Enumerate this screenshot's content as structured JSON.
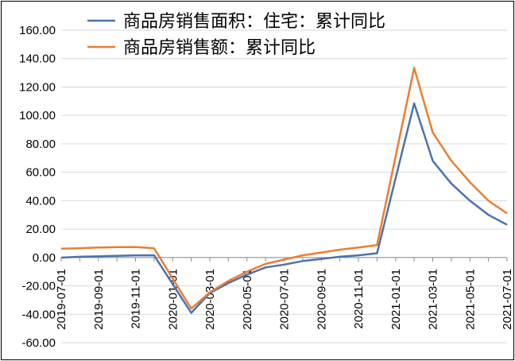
{
  "chart_data": {
    "type": "line",
    "title": "",
    "xlabel": "",
    "ylabel": "",
    "ylim": [
      -60,
      160
    ],
    "y_ticks": [
      -60,
      -40,
      -20,
      0,
      20,
      40,
      60,
      80,
      100,
      120,
      140,
      160
    ],
    "y_tick_labels": [
      "-60.00",
      "-40.00",
      "-20.00",
      "0.00",
      "20.00",
      "40.00",
      "60.00",
      "80.00",
      "100.00",
      "120.00",
      "140.00",
      "160.00"
    ],
    "x": [
      "2019-07",
      "2019-08",
      "2019-09",
      "2019-10",
      "2019-11",
      "2019-12",
      "2020-02",
      "2020-03",
      "2020-04",
      "2020-05",
      "2020-06",
      "2020-07",
      "2020-08",
      "2020-09",
      "2020-10",
      "2020-11",
      "2020-12",
      "2021-02",
      "2021-03",
      "2021-04",
      "2021-05",
      "2021-06",
      "2021-07"
    ],
    "x_tick_labels": [
      "2019-07-01",
      "2019-09-01",
      "2019-11-01",
      "2020-01-01",
      "2020-03-01",
      "2020-05-01",
      "2020-07-01",
      "2020-09-01",
      "2020-11-01",
      "2021-01-01",
      "2021-03-01",
      "2021-05-01",
      "2021-07-01"
    ],
    "grid": true,
    "legend_position": "top",
    "series": [
      {
        "name": "商品房销售面积：住宅：累计同比",
        "color": "#4a72b0",
        "values": [
          -0.1,
          0.5,
          0.8,
          1.2,
          1.5,
          1.5,
          -39.0,
          -25.0,
          -18.0,
          -12.0,
          -7.0,
          -5.0,
          -2.5,
          -1.0,
          0.5,
          1.5,
          3.0,
          108.5,
          68.0,
          52.0,
          40.0,
          30.0,
          23.0
        ]
      },
      {
        "name": "商品房销售额：累计同比",
        "color": "#ed7d31",
        "values": [
          6.2,
          6.5,
          7.0,
          7.3,
          7.4,
          6.5,
          -36.0,
          -24.5,
          -16.5,
          -10.0,
          -4.5,
          -1.5,
          1.5,
          3.5,
          5.5,
          7.0,
          8.7,
          133.5,
          88.0,
          68.0,
          53.0,
          40.0,
          31.0
        ]
      }
    ]
  }
}
